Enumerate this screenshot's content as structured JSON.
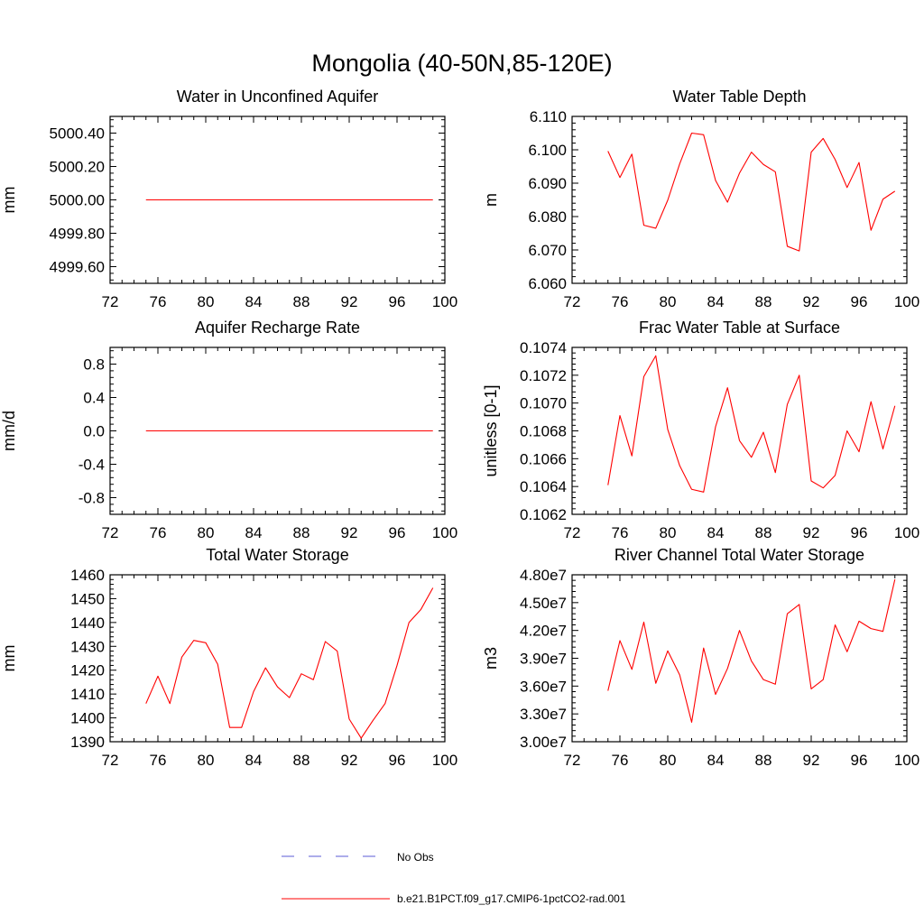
{
  "figure": {
    "title": "Mongolia (40-50N,85-120E)"
  },
  "legend": {
    "entries": [
      {
        "label": "No Obs",
        "color": "#5b5bd6",
        "style": "dashed"
      },
      {
        "label": "b.e21.B1PCT.f09_g17.CMIP6-1pctCO2-rad.001",
        "color": "#ff0000",
        "style": "solid"
      }
    ]
  },
  "chart_data": [
    {
      "type": "line",
      "title": "Water in Unconfined Aquifer",
      "ylabel": "mm",
      "xlim": [
        72,
        100
      ],
      "xticks": [
        72,
        76,
        80,
        84,
        88,
        92,
        96,
        100
      ],
      "ylim": [
        4999.5,
        5000.5
      ],
      "yticks": [
        4999.6,
        4999.8,
        5000.0,
        5000.2,
        5000.4
      ],
      "ytick_labels": [
        "4999.60",
        "4999.80",
        "5000.00",
        "5000.20",
        "5000.40"
      ],
      "series": [
        {
          "color": "#ff0000",
          "x": [
            75,
            76,
            77,
            78,
            79,
            80,
            81,
            82,
            83,
            84,
            85,
            86,
            87,
            88,
            89,
            90,
            91,
            92,
            93,
            94,
            95,
            96,
            97,
            98,
            99
          ],
          "y": [
            5000.0,
            5000.0,
            5000.0,
            5000.0,
            5000.0,
            5000.0,
            5000.0,
            5000.0,
            5000.0,
            5000.0,
            5000.0,
            5000.0,
            5000.0,
            5000.0,
            5000.0,
            5000.0,
            5000.0,
            5000.0,
            5000.0,
            5000.0,
            5000.0,
            5000.0,
            5000.0,
            5000.0,
            5000.0
          ]
        }
      ]
    },
    {
      "type": "line",
      "title": "Water Table Depth",
      "ylabel": "m",
      "xlim": [
        72,
        100
      ],
      "xticks": [
        72,
        76,
        80,
        84,
        88,
        92,
        96,
        100
      ],
      "ylim": [
        6.06,
        6.11
      ],
      "yticks": [
        6.06,
        6.07,
        6.08,
        6.09,
        6.1,
        6.11
      ],
      "ytick_labels": [
        "6.060",
        "6.070",
        "6.080",
        "6.090",
        "6.100",
        "6.110"
      ],
      "series": [
        {
          "color": "#ff0000",
          "x": [
            75,
            76,
            77,
            78,
            79,
            80,
            81,
            82,
            83,
            84,
            85,
            86,
            87,
            88,
            89,
            90,
            91,
            92,
            93,
            94,
            95,
            96,
            97,
            98,
            99
          ],
          "y": [
            6.0996,
            6.0917,
            6.0987,
            6.0774,
            6.0765,
            6.0849,
            6.0958,
            6.105,
            6.1045,
            6.0908,
            6.0843,
            6.093,
            6.0993,
            6.0956,
            6.0934,
            6.0711,
            6.0697,
            6.0993,
            6.1034,
            6.0971,
            6.0887,
            6.0962,
            6.0759,
            6.0852,
            6.0876
          ]
        }
      ]
    },
    {
      "type": "line",
      "title": "Aquifer Recharge Rate",
      "ylabel": "mm/d",
      "xlim": [
        72,
        100
      ],
      "xticks": [
        72,
        76,
        80,
        84,
        88,
        92,
        96,
        100
      ],
      "ylim": [
        -1.0,
        1.0
      ],
      "yticks": [
        -0.8,
        -0.4,
        0.0,
        0.4,
        0.8
      ],
      "ytick_labels": [
        "-0.8",
        "-0.4",
        "0.0",
        "0.4",
        "0.8"
      ],
      "series": [
        {
          "color": "#ff0000",
          "x": [
            75,
            76,
            77,
            78,
            79,
            80,
            81,
            82,
            83,
            84,
            85,
            86,
            87,
            88,
            89,
            90,
            91,
            92,
            93,
            94,
            95,
            96,
            97,
            98,
            99
          ],
          "y": [
            0,
            0,
            0,
            0,
            0,
            0,
            0,
            0,
            0,
            0,
            0,
            0,
            0,
            0,
            0,
            0,
            0,
            0,
            0,
            0,
            0,
            0,
            0,
            0,
            0
          ]
        }
      ]
    },
    {
      "type": "line",
      "title": "Frac Water Table at Surface",
      "ylabel": "unitless [0-1]",
      "xlim": [
        72,
        100
      ],
      "xticks": [
        72,
        76,
        80,
        84,
        88,
        92,
        96,
        100
      ],
      "ylim": [
        0.1062,
        0.1074
      ],
      "yticks": [
        0.1062,
        0.1064,
        0.1066,
        0.1068,
        0.107,
        0.1072,
        0.1074
      ],
      "ytick_labels": [
        "0.1062",
        "0.1064",
        "0.1066",
        "0.1068",
        "0.1070",
        "0.1072",
        "0.1074"
      ],
      "series": [
        {
          "color": "#ff0000",
          "x": [
            75,
            76,
            77,
            78,
            79,
            80,
            81,
            82,
            83,
            84,
            85,
            86,
            87,
            88,
            89,
            90,
            91,
            92,
            93,
            94,
            95,
            96,
            97,
            98,
            99
          ],
          "y": [
            0.10641,
            0.10691,
            0.10662,
            0.10719,
            0.10734,
            0.10681,
            0.10655,
            0.10638,
            0.10636,
            0.10683,
            0.10711,
            0.10673,
            0.10661,
            0.10679,
            0.1065,
            0.10699,
            0.1072,
            0.10644,
            0.10639,
            0.10648,
            0.1068,
            0.10665,
            0.10701,
            0.10667,
            0.10698
          ]
        }
      ]
    },
    {
      "type": "line",
      "title": "Total Water Storage",
      "ylabel": "mm",
      "xlim": [
        72,
        100
      ],
      "xticks": [
        72,
        76,
        80,
        84,
        88,
        92,
        96,
        100
      ],
      "ylim": [
        1390,
        1460
      ],
      "yticks": [
        1390,
        1400,
        1410,
        1420,
        1430,
        1440,
        1450,
        1460
      ],
      "ytick_labels": [
        "1390",
        "1400",
        "1410",
        "1420",
        "1430",
        "1440",
        "1450",
        "1460"
      ],
      "series": [
        {
          "color": "#ff0000",
          "x": [
            75,
            76,
            77,
            78,
            79,
            80,
            81,
            82,
            83,
            84,
            85,
            86,
            87,
            88,
            89,
            90,
            91,
            92,
            93,
            94,
            95,
            96,
            97,
            98,
            99
          ],
          "y": [
            1406,
            1417.5,
            1406,
            1425.5,
            1432.5,
            1431.5,
            1422.5,
            1396,
            1396,
            1411,
            1421,
            1413,
            1408.5,
            1418.5,
            1416,
            1432,
            1428,
            1399.5,
            1391.5,
            1399,
            1406,
            1422,
            1440,
            1445.5,
            1454.5
          ]
        }
      ]
    },
    {
      "type": "line",
      "title": "River Channel Total Water Storage",
      "ylabel": "m3",
      "xlim": [
        72,
        100
      ],
      "xticks": [
        72,
        76,
        80,
        84,
        88,
        92,
        96,
        100
      ],
      "ylim": [
        30000000,
        48000000
      ],
      "yticks": [
        30000000,
        33000000,
        36000000,
        39000000,
        42000000,
        45000000,
        48000000
      ],
      "ytick_labels": [
        "3.00e7",
        "3.30e7",
        "3.60e7",
        "3.90e7",
        "4.20e7",
        "4.50e7",
        "4.80e7"
      ],
      "series": [
        {
          "color": "#ff0000",
          "x": [
            75,
            76,
            77,
            78,
            79,
            80,
            81,
            82,
            83,
            84,
            85,
            86,
            87,
            88,
            89,
            90,
            91,
            92,
            93,
            94,
            95,
            96,
            97,
            98,
            99
          ],
          "y": [
            35500000,
            40900000,
            37800000,
            42900000,
            36300000,
            39800000,
            37200000,
            32100000,
            40100000,
            35100000,
            37900000,
            42000000,
            38700000,
            36700000,
            36200000,
            43800000,
            44800000,
            35700000,
            36700000,
            42600000,
            39700000,
            43000000,
            42200000,
            41900000,
            47500000
          ]
        }
      ]
    }
  ]
}
